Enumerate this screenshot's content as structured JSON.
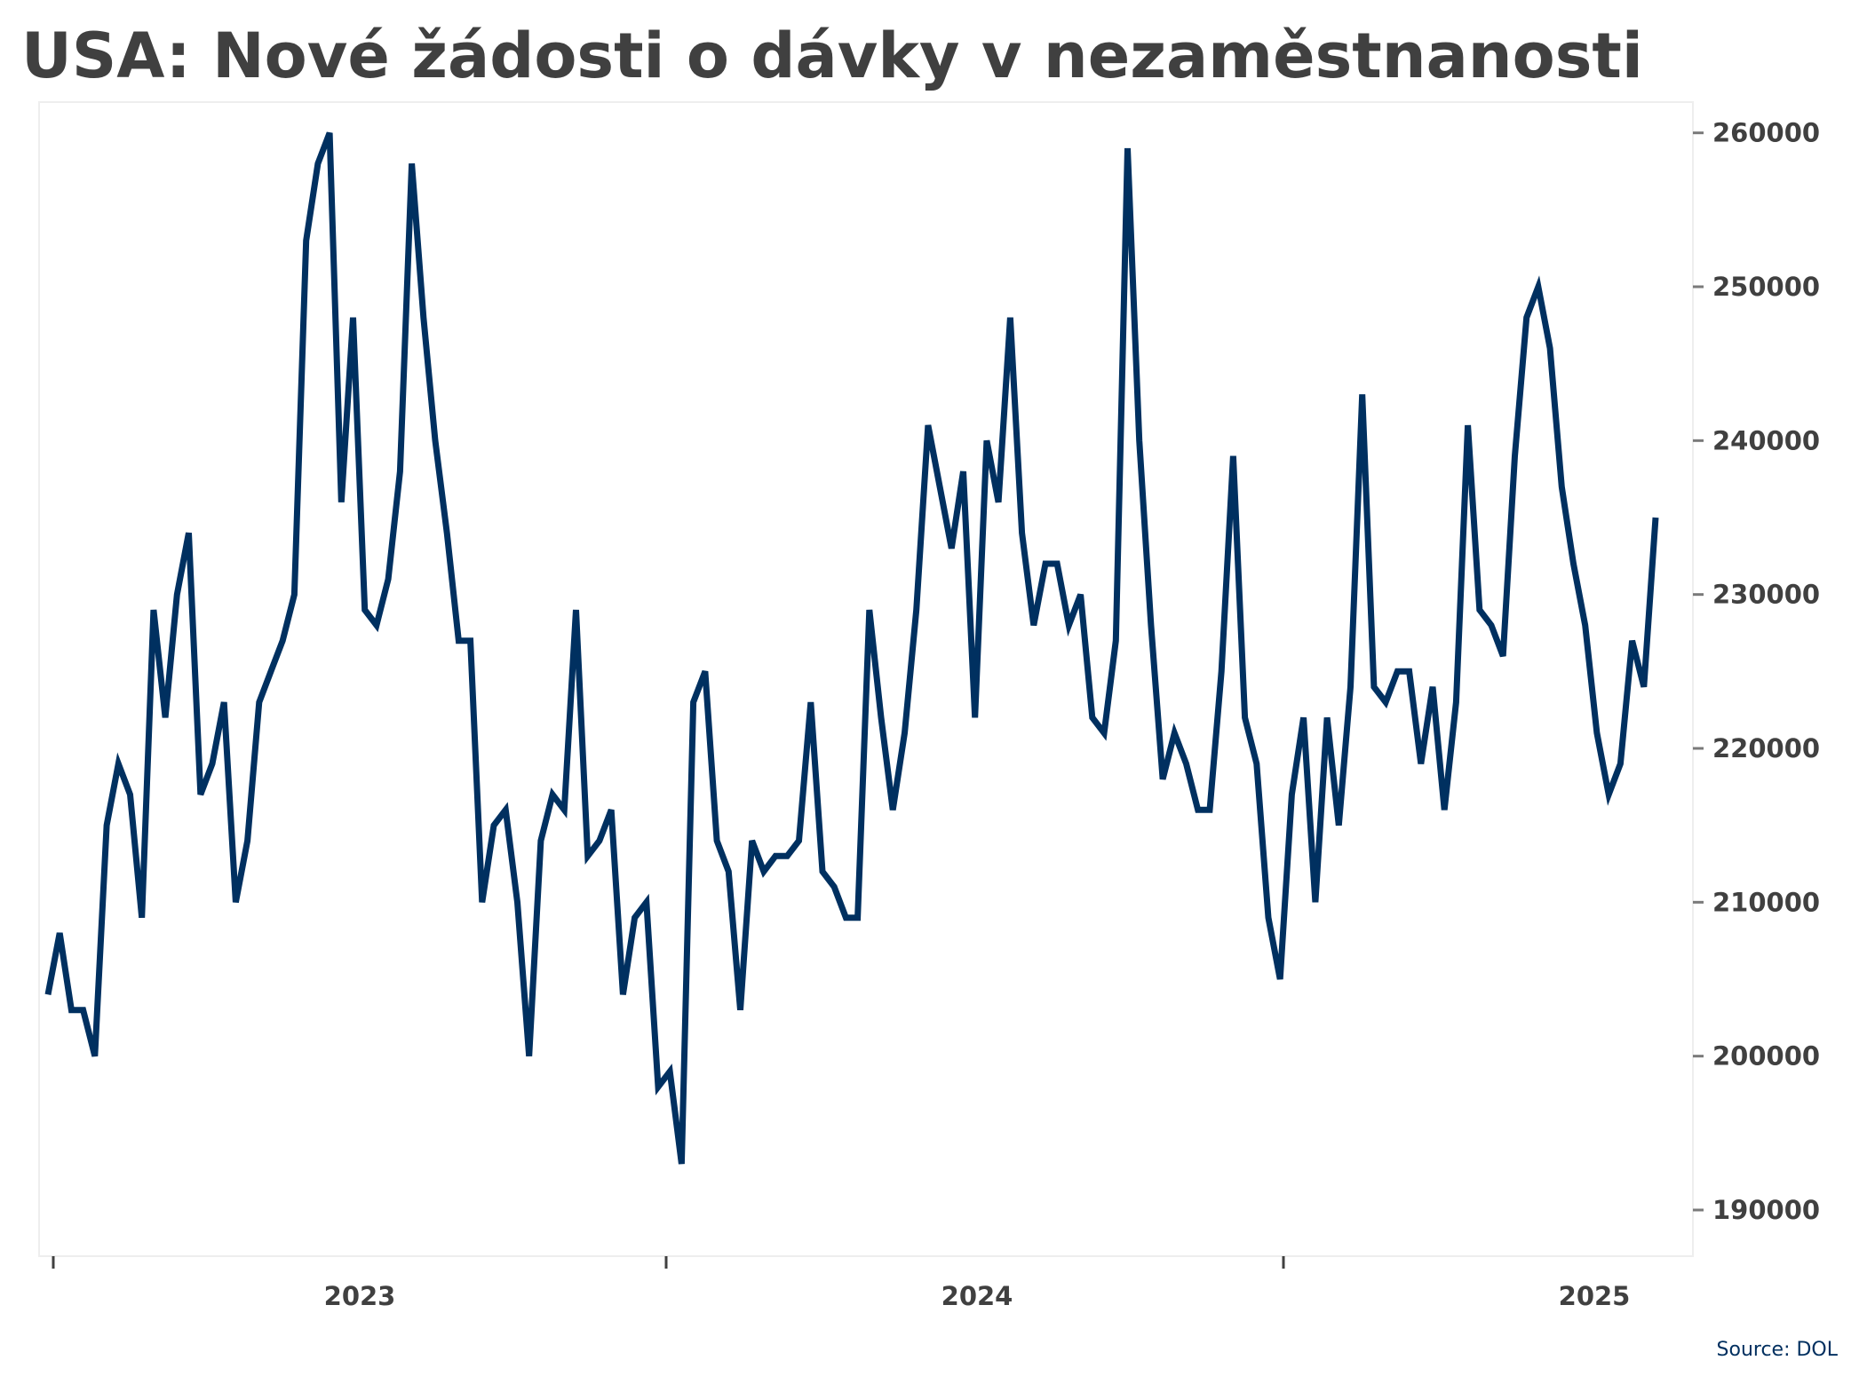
{
  "chart_data": {
    "type": "line",
    "title": "USA: Nové žádosti o dávky v nezaměstnanosti",
    "source": "Source: DOL",
    "ylim": [
      187000,
      262000
    ],
    "y_axis_position": "right",
    "yticks": [
      190000,
      200000,
      210000,
      220000,
      230000,
      240000,
      250000,
      260000
    ],
    "x_tick_labels": [
      "2023",
      "2024",
      "2025"
    ],
    "grid": false,
    "legend": "none",
    "line_color": "#003060",
    "series": [
      {
        "values": [
          204000,
          208000,
          203000,
          203000,
          200000,
          215000,
          219000,
          217000,
          209000,
          229000,
          222000,
          230000,
          234000,
          217000,
          219000,
          223000,
          210000,
          214000,
          223000,
          225000,
          227000,
          230000,
          253000,
          258000,
          260000,
          236000,
          248000,
          229000,
          228000,
          231000,
          238000,
          258000,
          248000,
          240000,
          234000,
          227000,
          227000,
          210000,
          215000,
          216000,
          210000,
          200000,
          214000,
          217000,
          216000,
          229000,
          213000,
          214000,
          216000,
          204000,
          209000,
          210000,
          198000,
          199000,
          193000,
          223000,
          225000,
          214000,
          212000,
          203000,
          214000,
          212000,
          213000,
          213000,
          214000,
          223000,
          212000,
          211000,
          209000,
          209000,
          229000,
          222000,
          216000,
          221000,
          229000,
          241000,
          237000,
          233000,
          238000,
          222000,
          240000,
          236000,
          248000,
          234000,
          228000,
          232000,
          232000,
          228000,
          230000,
          222000,
          221000,
          227000,
          259000,
          240000,
          228000,
          218000,
          221000,
          219000,
          216000,
          216000,
          225000,
          239000,
          222000,
          219000,
          209000,
          205000,
          217000,
          222000,
          210000,
          222000,
          215000,
          224000,
          243000,
          224000,
          223000,
          225000,
          225000,
          219000,
          224000,
          216000,
          223000,
          241000,
          229000,
          228000,
          226000,
          239000,
          248000,
          250000,
          246000,
          237000,
          232000,
          228000,
          221000,
          217000,
          219000,
          227000,
          224000,
          235000
        ]
      }
    ]
  }
}
